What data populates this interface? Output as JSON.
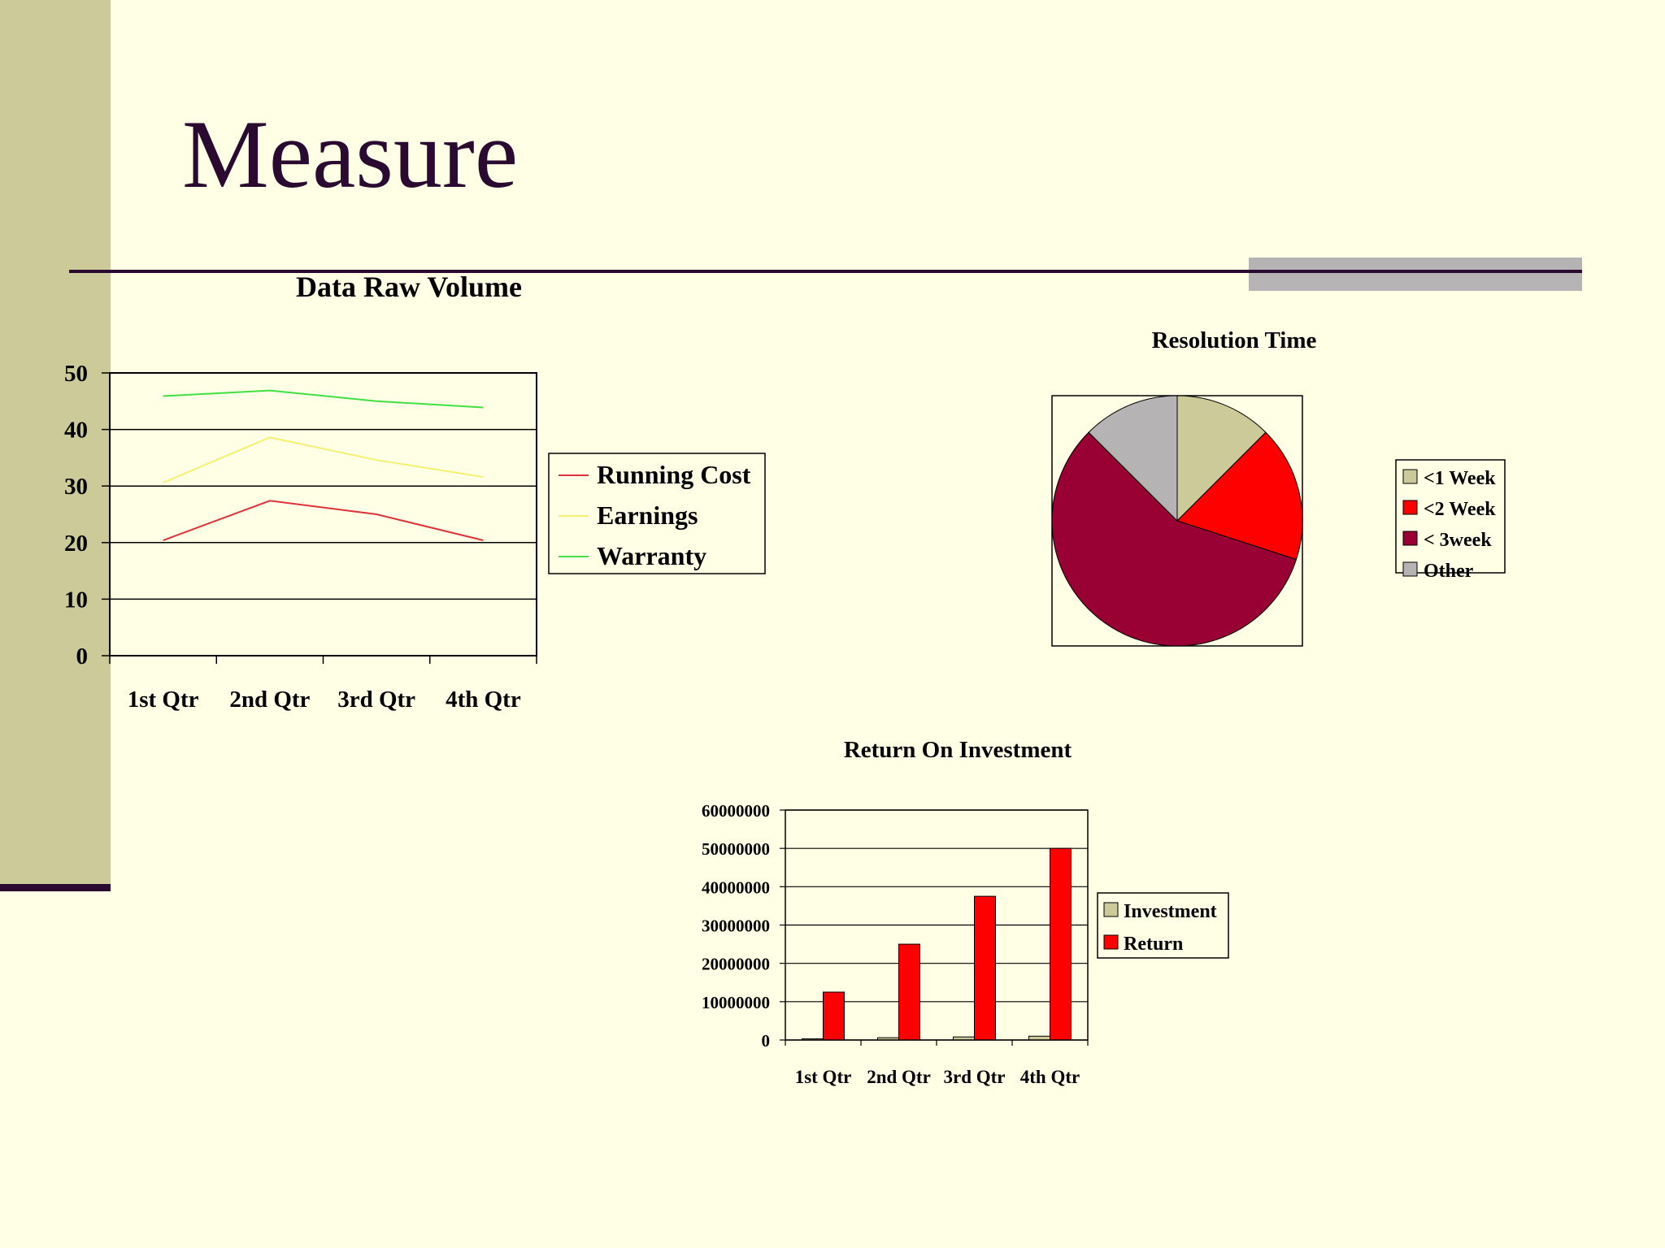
{
  "slide": {
    "title": "Measure"
  },
  "colors": {
    "sidebar": "#CBCA98",
    "title": "#2A0A31",
    "background": "#FFFFE5",
    "accent_bar": "#B5B3B4"
  },
  "chart_data": [
    {
      "type": "line",
      "title": "Data Raw Volume",
      "categories": [
        "1st Qtr",
        "2nd Qtr",
        "3rd Qtr",
        "4th Qtr"
      ],
      "ylim": [
        0,
        50
      ],
      "yticks": [
        "0",
        "10",
        "20",
        "30",
        "40",
        "50"
      ],
      "grid": true,
      "legend": "right",
      "series": [
        {
          "name": "Running Cost",
          "values": [
            20.4,
            27.4,
            25,
            20.4
          ],
          "color": "#E0303A"
        },
        {
          "name": "Earnings",
          "values": [
            30.6,
            38.6,
            34.6,
            31.6
          ],
          "color": "#F5F070"
        },
        {
          "name": "Warranty",
          "values": [
            45.9,
            46.9,
            45,
            43.9
          ],
          "color": "#40E040"
        }
      ]
    },
    {
      "type": "pie",
      "title": "Resolution Time",
      "legend": "right",
      "slices": [
        {
          "label": "<1 Week",
          "value": 12.5,
          "color": "#CBCA98"
        },
        {
          "label": "<2 Week",
          "value": 17.5,
          "color": "#FF0000"
        },
        {
          "label": "< 3week",
          "value": 57.5,
          "color": "#990033"
        },
        {
          "label": "Other",
          "value": 12.5,
          "color": "#B5B3B4"
        }
      ]
    },
    {
      "type": "bar",
      "title": "Return On Investment",
      "categories": [
        "1st Qtr",
        "2nd Qtr",
        "3rd Qtr",
        "4th Qtr"
      ],
      "ylim": [
        0,
        60000000
      ],
      "yticks": [
        "0",
        "10000000",
        "20000000",
        "30000000",
        "40000000",
        "50000000",
        "60000000"
      ],
      "grid": true,
      "legend": "right",
      "series": [
        {
          "name": "Investment",
          "values": [
            300000,
            600000,
            800000,
            1000000
          ],
          "color": "#CBCA98"
        },
        {
          "name": "Return",
          "values": [
            12500000,
            25000000,
            37500000,
            50000000
          ],
          "color": "#FF0000"
        }
      ]
    }
  ]
}
